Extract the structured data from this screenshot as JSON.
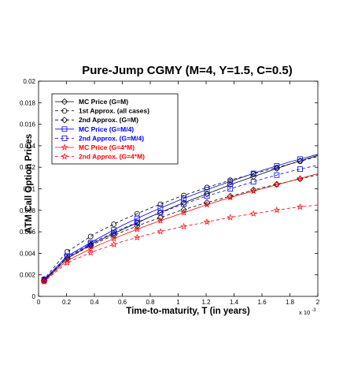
{
  "chart_data": {
    "type": "line",
    "title": "Pure-Jump CGMY (M=4, Y=1.5, C=0.5)",
    "xlabel": "Time-to-maturity, T (in years)",
    "ylabel": "ATM Call Option Prices",
    "x_multiplier_label": "x 10",
    "x_multiplier_exponent": "-3",
    "xlim": [
      0,
      2
    ],
    "ylim": [
      0,
      0.02
    ],
    "x_ticks": [
      0,
      0.2,
      0.4,
      0.6,
      0.8,
      1,
      1.2,
      1.4,
      1.6,
      1.8,
      2
    ],
    "x_tick_labels": [
      "0",
      "0.2",
      "0.4",
      "0.6",
      "0.8",
      "1",
      "1.2",
      "1.4",
      "1.6",
      "1.8",
      "2"
    ],
    "y_ticks": [
      0,
      0.002,
      0.004,
      0.006,
      0.008,
      0.01,
      0.012,
      0.014,
      0.016,
      0.018,
      0.02
    ],
    "y_tick_labels": [
      "0",
      "0.002",
      "0.004",
      "0.006",
      "0.008",
      "0.01",
      "0.012",
      "0.014",
      "0.016",
      "0.018",
      "0.02"
    ],
    "grid": false,
    "legend_position": "top-left",
    "marker_x": [
      0.04,
      0.206,
      0.373,
      0.539,
      0.706,
      0.873,
      1.04,
      1.206,
      1.373,
      1.539,
      1.706,
      1.873
    ],
    "series": [
      {
        "name": "MC Price (G=M)",
        "color": "#000000",
        "dash": "solid",
        "marker": "diamond",
        "x": [
          0.03,
          0.2,
          0.4,
          0.6,
          0.8,
          1.0,
          1.2,
          1.4,
          1.6,
          1.8,
          2.0
        ],
        "y": [
          0.00135,
          0.0035,
          0.005,
          0.0062,
          0.0074,
          0.0085,
          0.0095,
          0.0105,
          0.0114,
          0.0123,
          0.0131
        ]
      },
      {
        "name": "1st Approx. (all cases)",
        "color": "#000000",
        "dash": "dashed",
        "marker": "circle",
        "x": [
          0.03,
          0.2,
          0.4,
          0.6,
          0.8,
          1.0,
          1.2,
          1.4,
          1.6,
          1.8,
          2.0
        ],
        "y": [
          0.00145,
          0.0041,
          0.0058,
          0.0071,
          0.0082,
          0.0092,
          0.0101,
          0.0109,
          0.0116,
          0.0123,
          0.013
        ]
      },
      {
        "name": "2nd Approx. (G=M)",
        "color": "#000000",
        "dash": "dashed",
        "marker": "diamond",
        "x": [
          0.03,
          0.2,
          0.4,
          0.6,
          0.8,
          1.0,
          1.2,
          1.4,
          1.6,
          1.8,
          2.0
        ],
        "y": [
          0.0013,
          0.0035,
          0.0049,
          0.006,
          0.007,
          0.0079,
          0.0087,
          0.0094,
          0.0101,
          0.0107,
          0.0113
        ]
      },
      {
        "name": "MC Price (G=M/4)",
        "color": "#0000ff",
        "dash": "solid",
        "marker": "square",
        "x": [
          0.03,
          0.2,
          0.4,
          0.6,
          0.8,
          1.0,
          1.2,
          1.4,
          1.6,
          1.8,
          2.0
        ],
        "y": [
          0.0014,
          0.0037,
          0.0052,
          0.0066,
          0.0078,
          0.0089,
          0.0099,
          0.0108,
          0.0117,
          0.0125,
          0.0132
        ]
      },
      {
        "name": "2nd Approx. (G=M/4)",
        "color": "#0000ff",
        "dash": "dashed",
        "marker": "square",
        "x": [
          0.03,
          0.2,
          0.4,
          0.6,
          0.8,
          1.0,
          1.2,
          1.4,
          1.6,
          1.8,
          2.0
        ],
        "y": [
          0.00135,
          0.0036,
          0.0051,
          0.0063,
          0.0074,
          0.0084,
          0.0093,
          0.0101,
          0.0109,
          0.0116,
          0.0122
        ]
      },
      {
        "name": "MC Price (G=4*M)",
        "color": "#ff0000",
        "dash": "solid",
        "marker": "star",
        "x": [
          0.03,
          0.2,
          0.4,
          0.6,
          0.8,
          1.0,
          1.2,
          1.4,
          1.6,
          1.8,
          2.0
        ],
        "y": [
          0.0013,
          0.0033,
          0.0046,
          0.0057,
          0.0067,
          0.0076,
          0.0085,
          0.0093,
          0.01,
          0.0107,
          0.0114
        ]
      },
      {
        "name": "2nd Approx. (G=4*M)",
        "color": "#ff0000",
        "dash": "dashed",
        "marker": "star",
        "x": [
          0.03,
          0.2,
          0.4,
          0.6,
          0.8,
          1.0,
          1.2,
          1.4,
          1.6,
          1.8,
          2.0
        ],
        "y": [
          0.00125,
          0.0031,
          0.0042,
          0.0051,
          0.0058,
          0.0064,
          0.0069,
          0.0074,
          0.0078,
          0.0082,
          0.0085
        ]
      }
    ]
  }
}
